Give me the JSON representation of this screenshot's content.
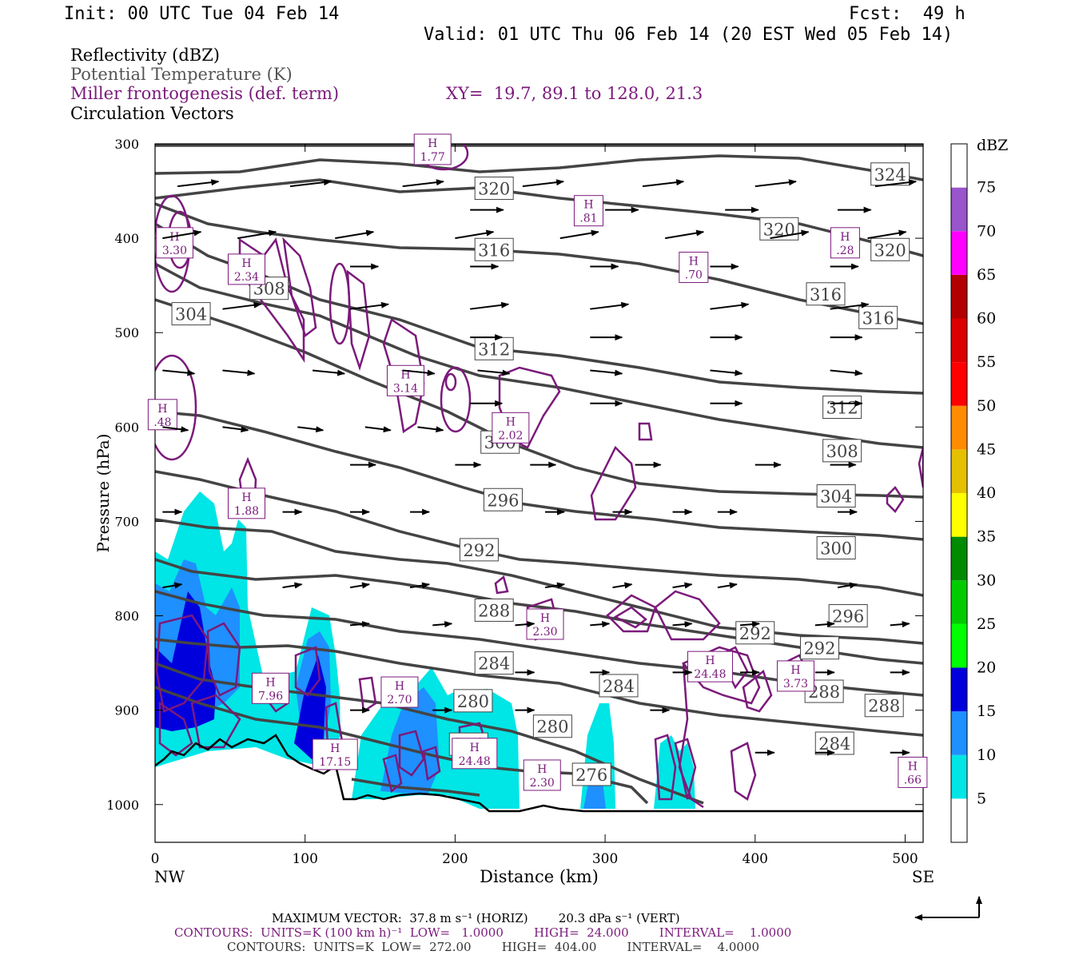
{
  "header": {
    "init": "Init: 00 UTC Tue 04 Feb 14",
    "fcst": "Fcst:  49 h",
    "valid": "Valid: 01 UTC Thu 06 Feb 14 (20 EST Wed 05 Feb 14)"
  },
  "legend_lines": {
    "reflectivity": "Reflectivity (dBZ)",
    "theta": "Potential Temperature (K)",
    "miller": "Miller frontogenesis (def. term)",
    "xy": "XY=  19.7, 89.1 to 128.0, 21.3",
    "vectors": "Circulation Vectors"
  },
  "footer": {
    "max_vector": "MAXIMUM VECTOR:  37.8 m s⁻¹ (HORIZ)        20.3 dPa s⁻¹ (VERT)",
    "contours_purple": "CONTOURS:  UNITS=K (100 km h)⁻¹  LOW=   1.0000        HIGH=  24.000        INTERVAL=    1.0000",
    "contours_gray": "CONTOURS:  UNITS=K  LOW=  272.00        HIGH=  404.00        INTERVAL=    4.0000"
  },
  "colors": {
    "theta": "#444444",
    "frontogenesis": "#7b1a7b",
    "vectors": "#000000",
    "terrain": "#000000"
  },
  "chart_data": {
    "type": "cross-section",
    "xlabel": "Distance (km)",
    "ylabel": "Pressure (hPa)",
    "xlim": [
      0,
      512
    ],
    "ylim": [
      1040,
      300
    ],
    "x_ticks": [
      0,
      100,
      200,
      300,
      400,
      500
    ],
    "y_ticks": [
      300,
      400,
      500,
      600,
      700,
      800,
      900,
      1000
    ],
    "x_end_labels": {
      "left": "NW",
      "right": "SE"
    },
    "colorbar": {
      "unit": "dBZ",
      "levels": [
        5,
        10,
        15,
        20,
        25,
        30,
        35,
        40,
        45,
        50,
        55,
        60,
        65,
        70,
        75
      ],
      "colors": [
        "#ffffff",
        "#00e5e5",
        "#1e90ff",
        "#0000dd",
        "#00ff00",
        "#00cc00",
        "#008b00",
        "#ffff00",
        "#e5c000",
        "#ff8c00",
        "#ff0000",
        "#dd0000",
        "#b20000",
        "#ff00ff",
        "#9955cc",
        "#ffffff"
      ]
    },
    "theta_labels": [
      {
        "v": "324",
        "x": 490,
        "p": 332
      },
      {
        "v": "320",
        "x": 226,
        "p": 347
      },
      {
        "v": "320",
        "x": 416,
        "p": 390
      },
      {
        "v": "320",
        "x": 490,
        "p": 412
      },
      {
        "v": "316",
        "x": 226,
        "p": 412
      },
      {
        "v": "316",
        "x": 447,
        "p": 459
      },
      {
        "v": "316",
        "x": 482,
        "p": 484
      },
      {
        "v": "312",
        "x": 226,
        "p": 517
      },
      {
        "v": "312",
        "x": 458,
        "p": 579
      },
      {
        "v": "308",
        "x": 76,
        "p": 453
      },
      {
        "v": "308",
        "x": 458,
        "p": 625
      },
      {
        "v": "304",
        "x": 24,
        "p": 480
      },
      {
        "v": "304",
        "x": 454,
        "p": 673
      },
      {
        "v": "300",
        "x": 230,
        "p": 616
      },
      {
        "v": "300",
        "x": 454,
        "p": 728
      },
      {
        "v": "296",
        "x": 232,
        "p": 677
      },
      {
        "v": "296",
        "x": 462,
        "p": 800
      },
      {
        "v": "292",
        "x": 216,
        "p": 730
      },
      {
        "v": "292",
        "x": 400,
        "p": 818
      },
      {
        "v": "292",
        "x": 443,
        "p": 834
      },
      {
        "v": "288",
        "x": 226,
        "p": 794
      },
      {
        "v": "288",
        "x": 446,
        "p": 880
      },
      {
        "v": "288",
        "x": 486,
        "p": 895
      },
      {
        "v": "284",
        "x": 226,
        "p": 850
      },
      {
        "v": "284",
        "x": 309,
        "p": 874
      },
      {
        "v": "284",
        "x": 453,
        "p": 935
      },
      {
        "v": "280",
        "x": 212,
        "p": 890
      },
      {
        "v": "280",
        "x": 265,
        "p": 917
      },
      {
        "v": "276",
        "x": 291,
        "p": 968
      },
      {
        "v": "276",
        "x": 209,
        "p": 936
      }
    ],
    "frontogenesis_highs": [
      {
        "label": "H",
        "value": "1.77",
        "x": 185,
        "p": 305
      },
      {
        "label": "H",
        "value": "3.30",
        "x": 13,
        "p": 404
      },
      {
        "label": "H",
        "value": "2.34",
        "x": 61,
        "p": 432
      },
      {
        "label": "H",
        "value": ".81",
        "x": 289,
        "p": 370
      },
      {
        "label": "H",
        "value": ".28",
        "x": 460,
        "p": 404
      },
      {
        "label": "H",
        "value": ".70",
        "x": 359,
        "p": 430
      },
      {
        "label": "H",
        "value": "3.14",
        "x": 167,
        "p": 550
      },
      {
        "label": "H",
        "value": "2.02",
        "x": 237,
        "p": 600
      },
      {
        "label": "H",
        "value": ".48",
        "x": 5,
        "p": 586
      },
      {
        "label": "H",
        "value": "1.88",
        "x": 61,
        "p": 680
      },
      {
        "label": "H",
        "value": "2.30",
        "x": 260,
        "p": 808
      },
      {
        "label": "H",
        "value": "24.48",
        "x": 370,
        "p": 853
      },
      {
        "label": "H",
        "value": "3.73",
        "x": 427,
        "p": 863
      },
      {
        "label": "H",
        "value": "7.96",
        "x": 77,
        "p": 876
      },
      {
        "label": "H",
        "value": "2.70",
        "x": 163,
        "p": 880
      },
      {
        "label": "H",
        "value": "17.15",
        "x": 120,
        "p": 946
      },
      {
        "label": "H",
        "value": "24.48",
        "x": 213,
        "p": 945
      },
      {
        "label": "H",
        "value": "2.30",
        "x": 258,
        "p": 968
      },
      {
        "label": "H",
        "value": ".66",
        "x": 505,
        "p": 965
      }
    ]
  }
}
